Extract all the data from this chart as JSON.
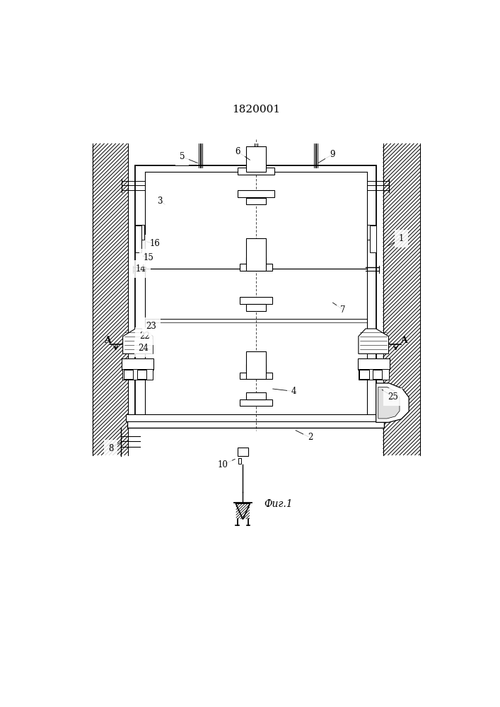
{
  "title": "1820001",
  "fig_label": "Фиг.1",
  "bg_color": "#ffffff",
  "line_color": "#000000",
  "title_fontsize": 11,
  "label_fontsize": 8.5
}
